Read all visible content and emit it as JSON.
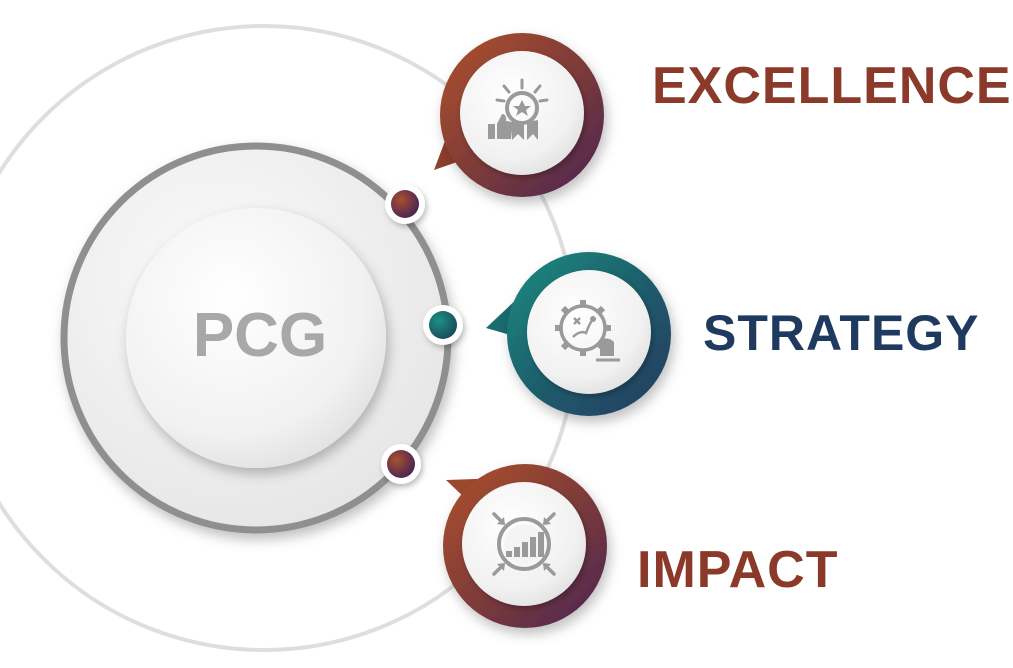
{
  "center": {
    "label": "PCG"
  },
  "items": [
    {
      "id": "excellence",
      "label": "EXCELLENCE",
      "color": "#8b3a2a",
      "icon": "award-icon"
    },
    {
      "id": "strategy",
      "label": "STRATEGY",
      "color": "#1f3a5f",
      "icon": "strategy-gear-icon"
    },
    {
      "id": "impact",
      "label": "IMPACT",
      "color": "#8b3a2a",
      "icon": "impact-chart-icon"
    }
  ],
  "colors": {
    "rust": "#9c4a2a",
    "plum": "#5a2a55",
    "teal": "#1a7a74",
    "navy": "#1f3a5f",
    "ring_gray": "#8f8f8f",
    "outer_arc": "#dcdcdc",
    "icon_gray": "#9a9a9a"
  }
}
